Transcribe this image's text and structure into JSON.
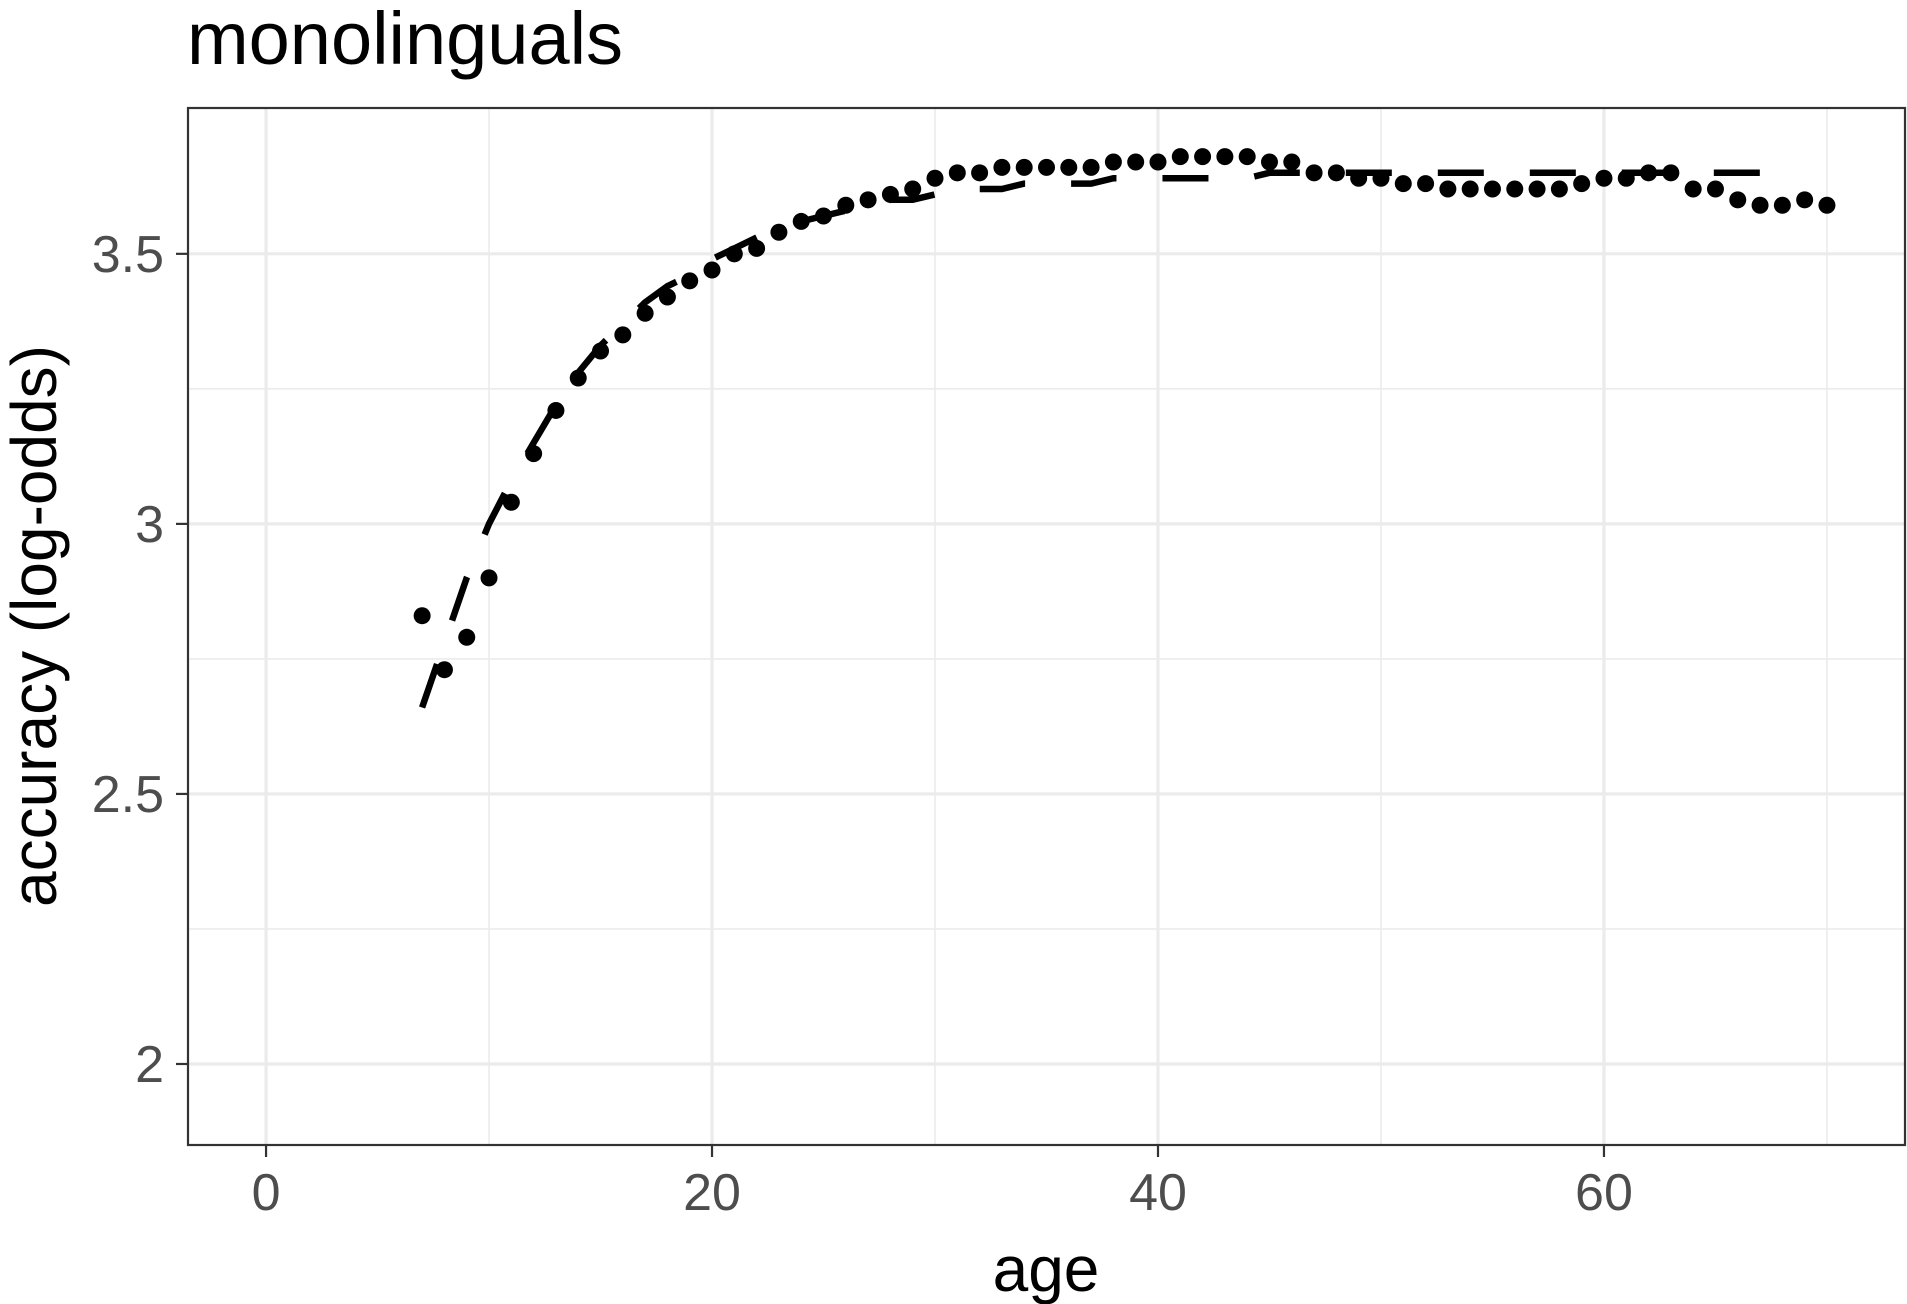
{
  "chart_data": {
    "type": "scatter",
    "title": "monolinguals",
    "xlabel": "age",
    "ylabel": "accuracy (log-odds)",
    "xlim": [
      -3.5,
      73.5
    ],
    "ylim": [
      1.85,
      3.77
    ],
    "x_ticks": [
      0,
      20,
      40,
      60
    ],
    "x_tick_labels": [
      "0",
      "20",
      "40",
      "60"
    ],
    "x_minor_ticks": [
      10,
      30,
      50,
      70
    ],
    "y_ticks": [
      2,
      2.5,
      3,
      3.5
    ],
    "y_tick_labels": [
      "2",
      "2.5",
      "3",
      "3.5"
    ],
    "y_minor_ticks": [
      2.25,
      2.75,
      3.25
    ],
    "grid": true,
    "legend": "none",
    "colors": {
      "points": "#000000",
      "fit": "#000000",
      "grid": "#ebebeb",
      "panel_border": "#333333"
    },
    "series": [
      {
        "kind": "points",
        "x": [
          7,
          8,
          9,
          10,
          11,
          12,
          13,
          14,
          15,
          16,
          17,
          18,
          19,
          20,
          21,
          22,
          23,
          24,
          25,
          26,
          27,
          28,
          29,
          30,
          31,
          32,
          33,
          34,
          35,
          36,
          37,
          38,
          39,
          40,
          41,
          42,
          43,
          44,
          45,
          46,
          47,
          48,
          49,
          50,
          51,
          52,
          53,
          54,
          55,
          56,
          57,
          58,
          59,
          60,
          61,
          62,
          63,
          64,
          65,
          66,
          67,
          68,
          69,
          70
        ],
        "y": [
          2.83,
          2.73,
          2.79,
          2.9,
          3.04,
          3.13,
          3.21,
          3.27,
          3.32,
          3.35,
          3.39,
          3.42,
          3.45,
          3.47,
          3.5,
          3.51,
          3.54,
          3.56,
          3.57,
          3.59,
          3.6,
          3.61,
          3.62,
          3.64,
          3.65,
          3.65,
          3.66,
          3.66,
          3.66,
          3.66,
          3.66,
          3.67,
          3.67,
          3.67,
          3.68,
          3.68,
          3.68,
          3.68,
          3.67,
          3.67,
          3.65,
          3.65,
          3.64,
          3.64,
          3.63,
          3.63,
          3.62,
          3.62,
          3.62,
          3.62,
          3.62,
          3.62,
          3.63,
          3.64,
          3.64,
          3.65,
          3.65,
          3.62,
          3.62,
          3.6,
          3.59,
          3.59,
          3.6,
          3.59
        ]
      },
      {
        "kind": "dashed-line",
        "x": [
          7,
          8,
          9,
          10,
          11,
          12,
          13,
          14,
          15,
          16,
          17,
          18,
          19,
          20,
          21,
          22,
          23,
          24,
          25,
          26,
          27,
          28,
          29,
          30,
          31,
          32,
          33,
          34,
          35,
          36,
          37,
          38,
          39,
          40,
          41,
          42,
          43,
          44,
          45,
          46,
          47,
          48,
          49,
          50,
          51,
          52,
          53,
          54,
          55,
          56,
          57,
          58,
          59,
          60,
          61,
          62,
          63,
          64,
          65,
          66,
          67,
          68,
          69
        ],
        "y": [
          2.66,
          2.78,
          2.9,
          3.0,
          3.08,
          3.15,
          3.22,
          3.28,
          3.33,
          3.37,
          3.41,
          3.44,
          3.46,
          3.49,
          3.51,
          3.53,
          3.55,
          3.56,
          3.57,
          3.58,
          3.59,
          3.6,
          3.6,
          3.61,
          3.61,
          3.62,
          3.62,
          3.63,
          3.63,
          3.63,
          3.63,
          3.64,
          3.64,
          3.64,
          3.64,
          3.64,
          3.64,
          3.64,
          3.65,
          3.65,
          3.65,
          3.65,
          3.65,
          3.65,
          3.65,
          3.65,
          3.65,
          3.65,
          3.65,
          3.65,
          3.65,
          3.65,
          3.65,
          3.65,
          3.65,
          3.65,
          3.65,
          3.65,
          3.65,
          3.65,
          3.65,
          3.65,
          3.65
        ]
      }
    ]
  }
}
